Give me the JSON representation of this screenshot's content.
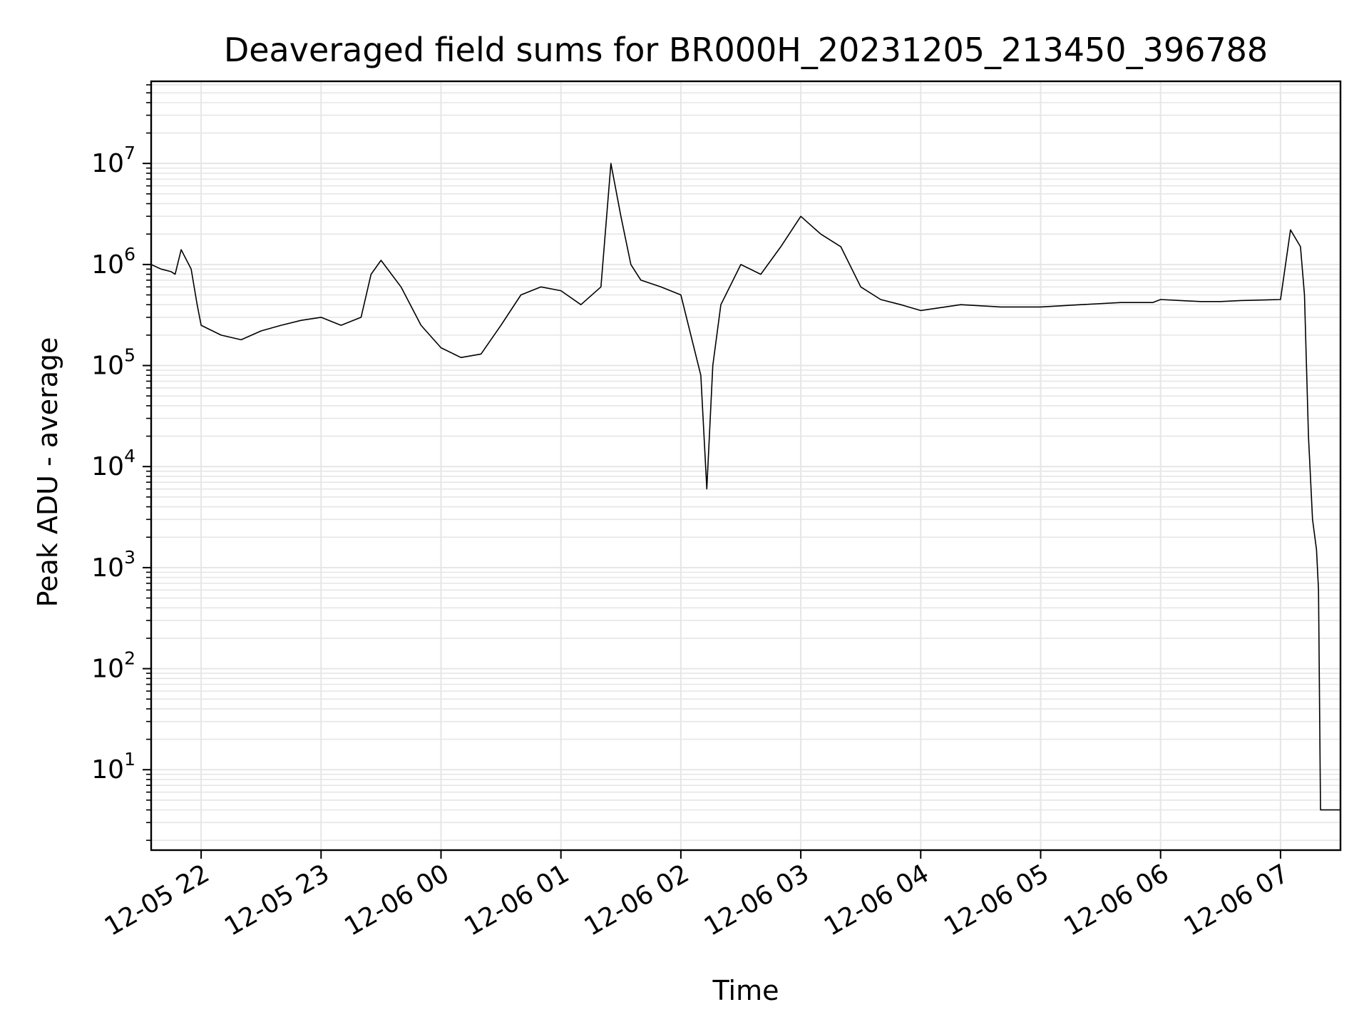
{
  "chart_data": {
    "type": "line",
    "title": "Deaveraged field sums for BR000H_20231205_213450_396788",
    "xlabel": "Time",
    "ylabel": "Peak ADU - average",
    "y_scale": "log",
    "ylim": [
      1.6,
      65000000
    ],
    "xlim": [
      "2023-12-05 21:35",
      "2023-12-06 07:30"
    ],
    "grid": true,
    "grid_color": "#e6e6e6",
    "line_color": "#000000",
    "x_ticks": [
      {
        "label": "12-05 22",
        "time": "2023-12-05 22:00"
      },
      {
        "label": "12-05 23",
        "time": "2023-12-05 23:00"
      },
      {
        "label": "12-06 00",
        "time": "2023-12-06 00:00"
      },
      {
        "label": "12-06 01",
        "time": "2023-12-06 01:00"
      },
      {
        "label": "12-06 02",
        "time": "2023-12-06 02:00"
      },
      {
        "label": "12-06 03",
        "time": "2023-12-06 03:00"
      },
      {
        "label": "12-06 04",
        "time": "2023-12-06 04:00"
      },
      {
        "label": "12-06 05",
        "time": "2023-12-06 05:00"
      },
      {
        "label": "12-06 06",
        "time": "2023-12-06 06:00"
      },
      {
        "label": "12-06 07",
        "time": "2023-12-06 07:00"
      }
    ],
    "y_ticks": [
      {
        "base": "10",
        "exp": "1",
        "value": 10
      },
      {
        "base": "10",
        "exp": "2",
        "value": 100
      },
      {
        "base": "10",
        "exp": "3",
        "value": 1000
      },
      {
        "base": "10",
        "exp": "4",
        "value": 10000
      },
      {
        "base": "10",
        "exp": "5",
        "value": 100000
      },
      {
        "base": "10",
        "exp": "6",
        "value": 1000000
      },
      {
        "base": "10",
        "exp": "7",
        "value": 10000000
      }
    ],
    "series": [
      {
        "x": [
          "2023-12-05 21:35",
          "2023-12-05 21:40",
          "2023-12-05 21:45",
          "2023-12-05 21:47",
          "2023-12-05 21:50",
          "2023-12-05 21:55",
          "2023-12-05 21:58",
          "2023-12-05 22:00",
          "2023-12-05 22:10",
          "2023-12-05 22:20",
          "2023-12-05 22:30",
          "2023-12-05 22:40",
          "2023-12-05 22:50",
          "2023-12-05 23:00",
          "2023-12-05 23:10",
          "2023-12-05 23:20",
          "2023-12-05 23:25",
          "2023-12-05 23:30",
          "2023-12-05 23:40",
          "2023-12-05 23:50",
          "2023-12-06 00:00",
          "2023-12-06 00:10",
          "2023-12-06 00:20",
          "2023-12-06 00:30",
          "2023-12-06 00:40",
          "2023-12-06 00:50",
          "2023-12-06 01:00",
          "2023-12-06 01:10",
          "2023-12-06 01:20",
          "2023-12-06 01:25",
          "2023-12-06 01:30",
          "2023-12-06 01:35",
          "2023-12-06 01:40",
          "2023-12-06 01:50",
          "2023-12-06 02:00",
          "2023-12-06 02:10",
          "2023-12-06 02:13",
          "2023-12-06 02:16",
          "2023-12-06 02:20",
          "2023-12-06 02:30",
          "2023-12-06 02:40",
          "2023-12-06 02:50",
          "2023-12-06 03:00",
          "2023-12-06 03:10",
          "2023-12-06 03:20",
          "2023-12-06 03:30",
          "2023-12-06 03:40",
          "2023-12-06 03:50",
          "2023-12-06 04:00",
          "2023-12-06 04:20",
          "2023-12-06 04:40",
          "2023-12-06 05:00",
          "2023-12-06 05:20",
          "2023-12-06 05:40",
          "2023-12-06 05:56",
          "2023-12-06 06:00",
          "2023-12-06 06:20",
          "2023-12-06 06:30",
          "2023-12-06 06:40",
          "2023-12-06 07:00",
          "2023-12-06 07:05",
          "2023-12-06 07:10",
          "2023-12-06 07:12",
          "2023-12-06 07:14",
          "2023-12-06 07:16",
          "2023-12-06 07:18",
          "2023-12-06 07:19",
          "2023-12-06 07:20",
          "2023-12-06 07:25",
          "2023-12-06 07:30"
        ],
        "y": [
          1000000,
          900000,
          850000,
          800000,
          1400000,
          900000,
          400000,
          250000,
          200000,
          180000,
          220000,
          250000,
          280000,
          300000,
          250000,
          300000,
          800000,
          1100000,
          600000,
          250000,
          150000,
          120000,
          130000,
          250000,
          500000,
          600000,
          550000,
          400000,
          600000,
          10000000,
          3000000,
          1000000,
          700000,
          600000,
          500000,
          80000,
          6000,
          100000,
          400000,
          1000000,
          800000,
          1500000,
          3000000,
          2000000,
          1500000,
          600000,
          450000,
          400000,
          350000,
          400000,
          380000,
          380000,
          400000,
          420000,
          420000,
          450000,
          430000,
          430000,
          440000,
          450000,
          2200000,
          1500000,
          500000,
          20000,
          3000,
          1500,
          600,
          4,
          4,
          4
        ]
      }
    ]
  }
}
